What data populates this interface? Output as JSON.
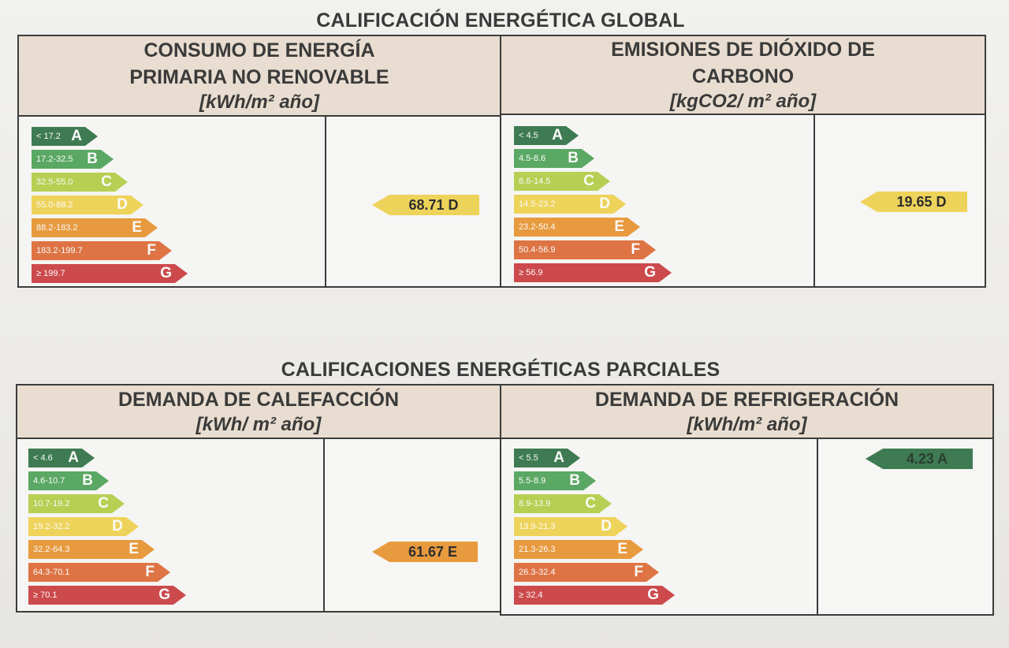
{
  "global": {
    "title": "CALIFICACIÓN ENERGÉTICA GLOBAL",
    "panels": [
      {
        "title_lines": [
          "CONSUMO DE ENERGÍA",
          "PRIMARIA NO RENOVABLE"
        ],
        "unit": "[kWh/m² año]",
        "bands": [
          {
            "range": "< 17.2",
            "letter": "A"
          },
          {
            "range": "17.2-32.5",
            "letter": "B"
          },
          {
            "range": "32.5-55.0",
            "letter": "C"
          },
          {
            "range": "55.0-88.2",
            "letter": "D"
          },
          {
            "range": "88.2-183.2",
            "letter": "E"
          },
          {
            "range": "183.2-199.7",
            "letter": "F"
          },
          {
            "range": "≥ 199.7",
            "letter": "G"
          }
        ],
        "value": "68.71 D",
        "value_letter": "D"
      },
      {
        "title_lines": [
          "EMISIONES DE DIÓXIDO DE",
          "CARBONO"
        ],
        "unit": "[kgCO2/ m² año]",
        "bands": [
          {
            "range": "< 4.5",
            "letter": "A"
          },
          {
            "range": "4.5-8.6",
            "letter": "B"
          },
          {
            "range": "8.6-14.5",
            "letter": "C"
          },
          {
            "range": "14.5-23.2",
            "letter": "D"
          },
          {
            "range": "23.2-50.4",
            "letter": "E"
          },
          {
            "range": "50.4-56.9",
            "letter": "F"
          },
          {
            "range": "≥ 56.9",
            "letter": "G"
          }
        ],
        "value": "19.65 D",
        "value_letter": "D"
      }
    ]
  },
  "partial": {
    "title": "CALIFICACIONES ENERGÉTICAS PARCIALES",
    "panels": [
      {
        "title_lines": [
          "DEMANDA DE CALEFACCIÓN"
        ],
        "unit": "[kWh/ m² año]",
        "bands": [
          {
            "range": "< 4.6",
            "letter": "A"
          },
          {
            "range": "4.6-10.7",
            "letter": "B"
          },
          {
            "range": "10.7-19.2",
            "letter": "C"
          },
          {
            "range": "19.2-32.2",
            "letter": "D"
          },
          {
            "range": "32.2-64.3",
            "letter": "E"
          },
          {
            "range": "64.3-70.1",
            "letter": "F"
          },
          {
            "range": "≥ 70.1",
            "letter": "G"
          }
        ],
        "value": "61.67 E",
        "value_letter": "E"
      },
      {
        "title_lines": [
          "DEMANDA DE REFRIGERACIÓN"
        ],
        "unit": "[kWh/m² año]",
        "bands": [
          {
            "range": "< 5.5",
            "letter": "A"
          },
          {
            "range": "5.5-8.9",
            "letter": "B"
          },
          {
            "range": "8.9-13.9",
            "letter": "C"
          },
          {
            "range": "13.9-21.3",
            "letter": "D"
          },
          {
            "range": "21.3-26.3",
            "letter": "E"
          },
          {
            "range": "26.3-32.4",
            "letter": "F"
          },
          {
            "range": "≥ 32.4",
            "letter": "G"
          }
        ],
        "value": "4.23 A",
        "value_letter": "A"
      }
    ]
  },
  "colors": {
    "A": "#3e7b52",
    "B": "#5aa863",
    "C": "#b7cf52",
    "D": "#eed35a",
    "E": "#e89a3e",
    "F": "#de7444",
    "G": "#cc4a4c"
  }
}
